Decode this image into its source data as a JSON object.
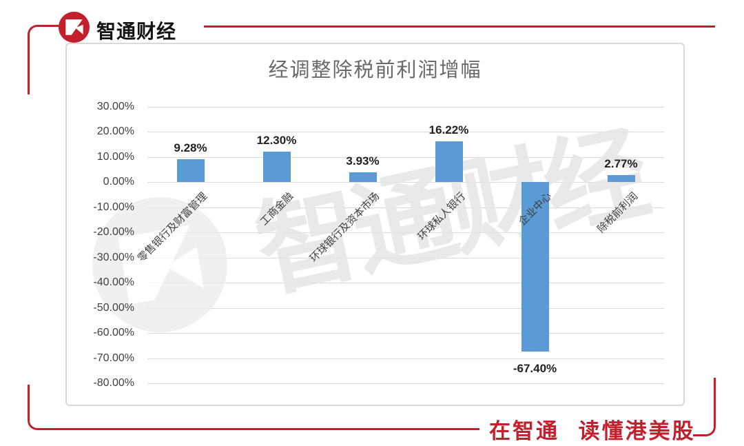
{
  "brand": {
    "logo_text": "智通财经",
    "footer_slogan": "在智通 读懂港美股",
    "red": "#c3202e"
  },
  "watermark": {
    "text": "智通财经"
  },
  "chart_data": {
    "type": "bar",
    "title": "经调整除税前利润增幅",
    "categories": [
      "零售银行及财富管理",
      "工商金融",
      "环球银行及资本市场",
      "环球私人银行",
      "企业中心",
      "除税前利润"
    ],
    "values": [
      9.28,
      12.3,
      3.93,
      16.22,
      -67.4,
      2.77
    ],
    "data_labels": [
      "9.28%",
      "12.30%",
      "3.93%",
      "16.22%",
      "-67.40%",
      "2.77%"
    ],
    "y_ticks": [
      "30.00%",
      "20.00%",
      "10.00%",
      "0.00%",
      "-10.00%",
      "-20.00%",
      "-30.00%",
      "-40.00%",
      "-50.00%",
      "-60.00%",
      "-70.00%",
      "-80.00%"
    ],
    "ylim": [
      -80,
      30
    ],
    "xlabel": "",
    "ylabel": "",
    "legend": "none",
    "grid": true,
    "bar_color": "#5b9bd5",
    "gridline_color": "#d9d9d9"
  }
}
